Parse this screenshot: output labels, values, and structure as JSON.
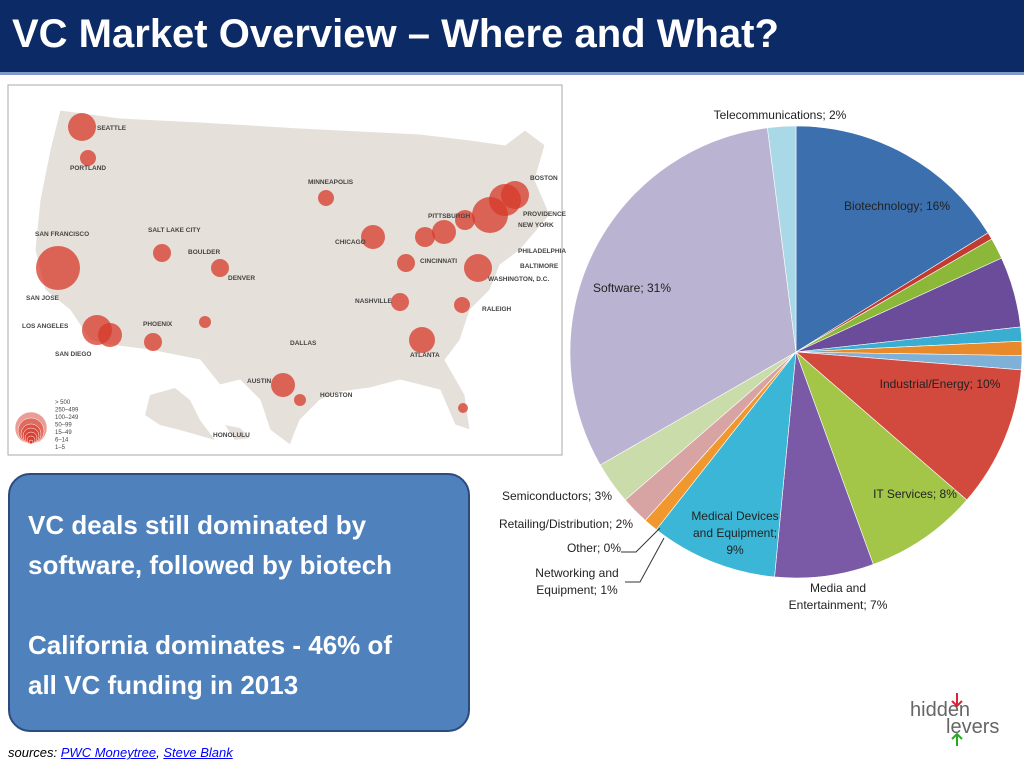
{
  "title": "VC Market Overview – Where and What?",
  "map": {
    "cities": [
      "SEATTLE",
      "PORTLAND",
      "SAN FRANCISCO",
      "SALT LAKE CITY",
      "BOULDER",
      "DENVER",
      "MINNEAPOLIS",
      "CHICAGO",
      "PITTSBURGH",
      "PROVIDENCE",
      "BOSTON",
      "NEW YORK",
      "PHILADELPHIA",
      "BALTIMORE",
      "WASHINGTON, D.C.",
      "CINCINNATI",
      "NASHVILLE",
      "RALEIGH",
      "ATLANTA",
      "DALLAS",
      "AUSTIN",
      "HOUSTON",
      "PHOENIX",
      "SAN JOSE",
      "LOS ANGELES",
      "SAN DIEGO",
      "HONOLULU"
    ],
    "legend": [
      "> 500",
      "250–499",
      "100–249",
      "50–99",
      "15–49",
      "6–14",
      "1–5"
    ]
  },
  "callout": [
    "VC deals still dominated by",
    "software, followed by biotech",
    "California dominates - 46% of",
    "all VC funding in 2013"
  ],
  "sources": {
    "label": "sources:",
    "links": [
      "PWC Moneytree",
      "Steve Blank"
    ]
  },
  "logo": [
    "hidden",
    "levers"
  ],
  "chart_data": {
    "type": "pie",
    "labels": [
      [
        "Biotechnology; 16%"
      ],
      null,
      null,
      null,
      null,
      null,
      null,
      [
        "Industrial/Energy; 10%"
      ],
      [
        "IT Services; 8%"
      ],
      [
        "Media and",
        "Entertainment; 7%"
      ],
      [
        "Medical Devices",
        "and Equipment;",
        "9%"
      ],
      [
        "Networking and",
        "Equipment; 1%"
      ],
      [
        "Other; 0%"
      ],
      [
        "Retailing/Distribution; 2%"
      ],
      [
        "Semiconductors; 3%"
      ],
      [
        "Software; 31%"
      ],
      [
        "Telecommunications; 2%"
      ]
    ],
    "values": [
      16,
      0.5,
      1.5,
      5,
      1,
      1,
      1,
      10,
      8,
      7,
      9,
      1,
      0,
      2,
      3,
      31,
      2
    ],
    "colors": [
      "#3b6fae",
      "#c23b30",
      "#8cb83a",
      "#6b4c9a",
      "#3aaed0",
      "#e8892a",
      "#7fb0d8",
      "#d24a3e",
      "#a3c648",
      "#7a5aa6",
      "#3cb6d6",
      "#f0982e",
      "#999999",
      "#d8a3a3",
      "#c9dcaa",
      "#bab3d2",
      "#a9d8e6"
    ]
  }
}
